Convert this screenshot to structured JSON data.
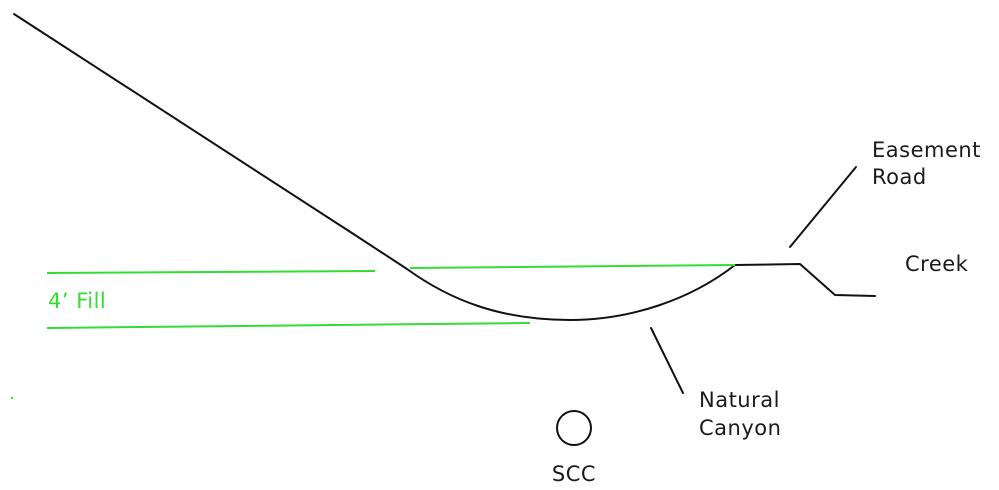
{
  "labels": {
    "easement_road": [
      "Easement",
      "Road"
    ],
    "creek": "Creek",
    "fill": "4’ Fill",
    "natural_canyon": [
      "Natural",
      "Canyon"
    ],
    "scc": "SCC"
  },
  "colors": {
    "terrain": "#111111",
    "fill_lines": "#33dd33",
    "text": "#1a1a1a"
  }
}
